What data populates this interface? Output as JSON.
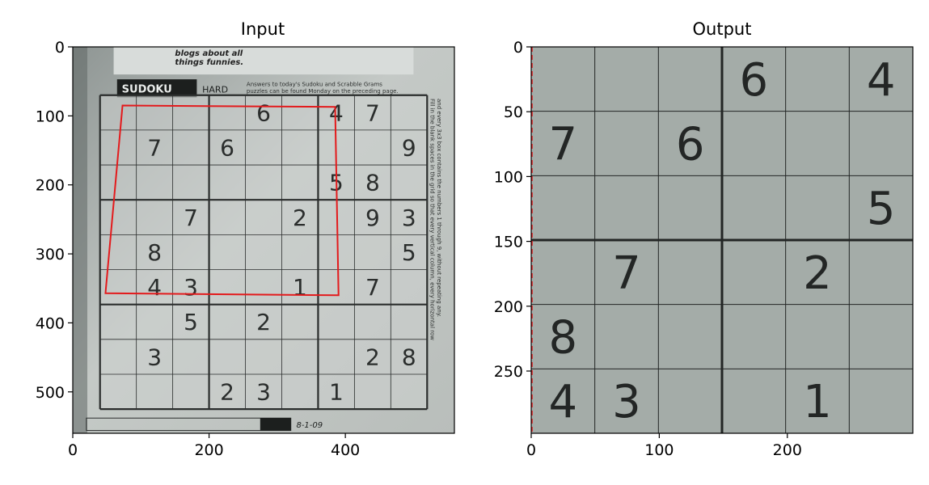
{
  "chart_data": [
    {
      "type": "image",
      "title": "Input",
      "xlim": [
        0,
        560
      ],
      "ylim": [
        560,
        0
      ],
      "xticks": [
        0,
        200,
        400
      ],
      "yticks": [
        0,
        100,
        200,
        300,
        400,
        500
      ],
      "header": {
        "sudoku_label": "SUDOKU",
        "difficulty": "HARD",
        "blurb_1": "Answers to today's Sudoku and Scrabble Grams",
        "blurb_2": "puzzles can be found Monday on the preceding page.",
        "cartoon_1": "blogs about all",
        "cartoon_2": "things funnies.",
        "date": "8-1-09"
      },
      "side_text": [
        "Fill in the blank spaces in the grid so that every vertical column, every horizontal row",
        "and every 3x3 box contains the numbers 1 through 9, without repeating any."
      ],
      "grid_bounds_data": {
        "x0": 40,
        "x1": 520,
        "y0": 70,
        "y1": 525
      },
      "given_digits": [
        {
          "row": 0,
          "col": 4,
          "value": "6"
        },
        {
          "row": 0,
          "col": 6,
          "value": "4"
        },
        {
          "row": 0,
          "col": 7,
          "value": "7"
        },
        {
          "row": 1,
          "col": 1,
          "value": "7"
        },
        {
          "row": 1,
          "col": 3,
          "value": "6"
        },
        {
          "row": 1,
          "col": 8,
          "value": "9"
        },
        {
          "row": 2,
          "col": 6,
          "value": "5"
        },
        {
          "row": 2,
          "col": 7,
          "value": "8"
        },
        {
          "row": 3,
          "col": 2,
          "value": "7"
        },
        {
          "row": 3,
          "col": 5,
          "value": "2"
        },
        {
          "row": 3,
          "col": 7,
          "value": "9"
        },
        {
          "row": 3,
          "col": 8,
          "value": "3"
        },
        {
          "row": 4,
          "col": 1,
          "value": "8"
        },
        {
          "row": 4,
          "col": 8,
          "value": "5"
        },
        {
          "row": 5,
          "col": 1,
          "value": "4"
        },
        {
          "row": 5,
          "col": 2,
          "value": "3"
        },
        {
          "row": 5,
          "col": 5,
          "value": "1"
        },
        {
          "row": 5,
          "col": 7,
          "value": "7"
        },
        {
          "row": 6,
          "col": 2,
          "value": "5"
        },
        {
          "row": 6,
          "col": 4,
          "value": "2"
        },
        {
          "row": 7,
          "col": 1,
          "value": "3"
        },
        {
          "row": 7,
          "col": 7,
          "value": "2"
        },
        {
          "row": 7,
          "col": 8,
          "value": "8"
        },
        {
          "row": 8,
          "col": 3,
          "value": "2"
        },
        {
          "row": 8,
          "col": 4,
          "value": "3"
        },
        {
          "row": 8,
          "col": 6,
          "value": "1"
        }
      ],
      "red_quad": [
        [
          73,
          85
        ],
        [
          385,
          87
        ],
        [
          390,
          360
        ],
        [
          48,
          357
        ]
      ],
      "overlay_color": "#e31a1c",
      "paper_color": "#c4c9c6",
      "ink_color": "#2a2d2c"
    },
    {
      "type": "image",
      "title": "Output",
      "xlim": [
        0,
        298
      ],
      "ylim": [
        298,
        0
      ],
      "xticks": [
        0,
        100,
        200
      ],
      "yticks": [
        0,
        50,
        100,
        150,
        200,
        250
      ],
      "rows": 6,
      "cols": 6,
      "cell_values": [
        [
          "",
          "",
          "",
          "6",
          "",
          "4"
        ],
        [
          "7",
          "",
          "6",
          "",
          "",
          ""
        ],
        [
          "",
          "",
          "",
          "",
          "",
          "5"
        ],
        [
          "",
          "7",
          "",
          "",
          "2",
          ""
        ],
        [
          "8",
          "",
          "",
          "",
          "",
          ""
        ],
        [
          "4",
          "3",
          "",
          "",
          "1",
          ""
        ]
      ],
      "paper_color": "#a4aca8",
      "ink_color": "#232625"
    }
  ]
}
